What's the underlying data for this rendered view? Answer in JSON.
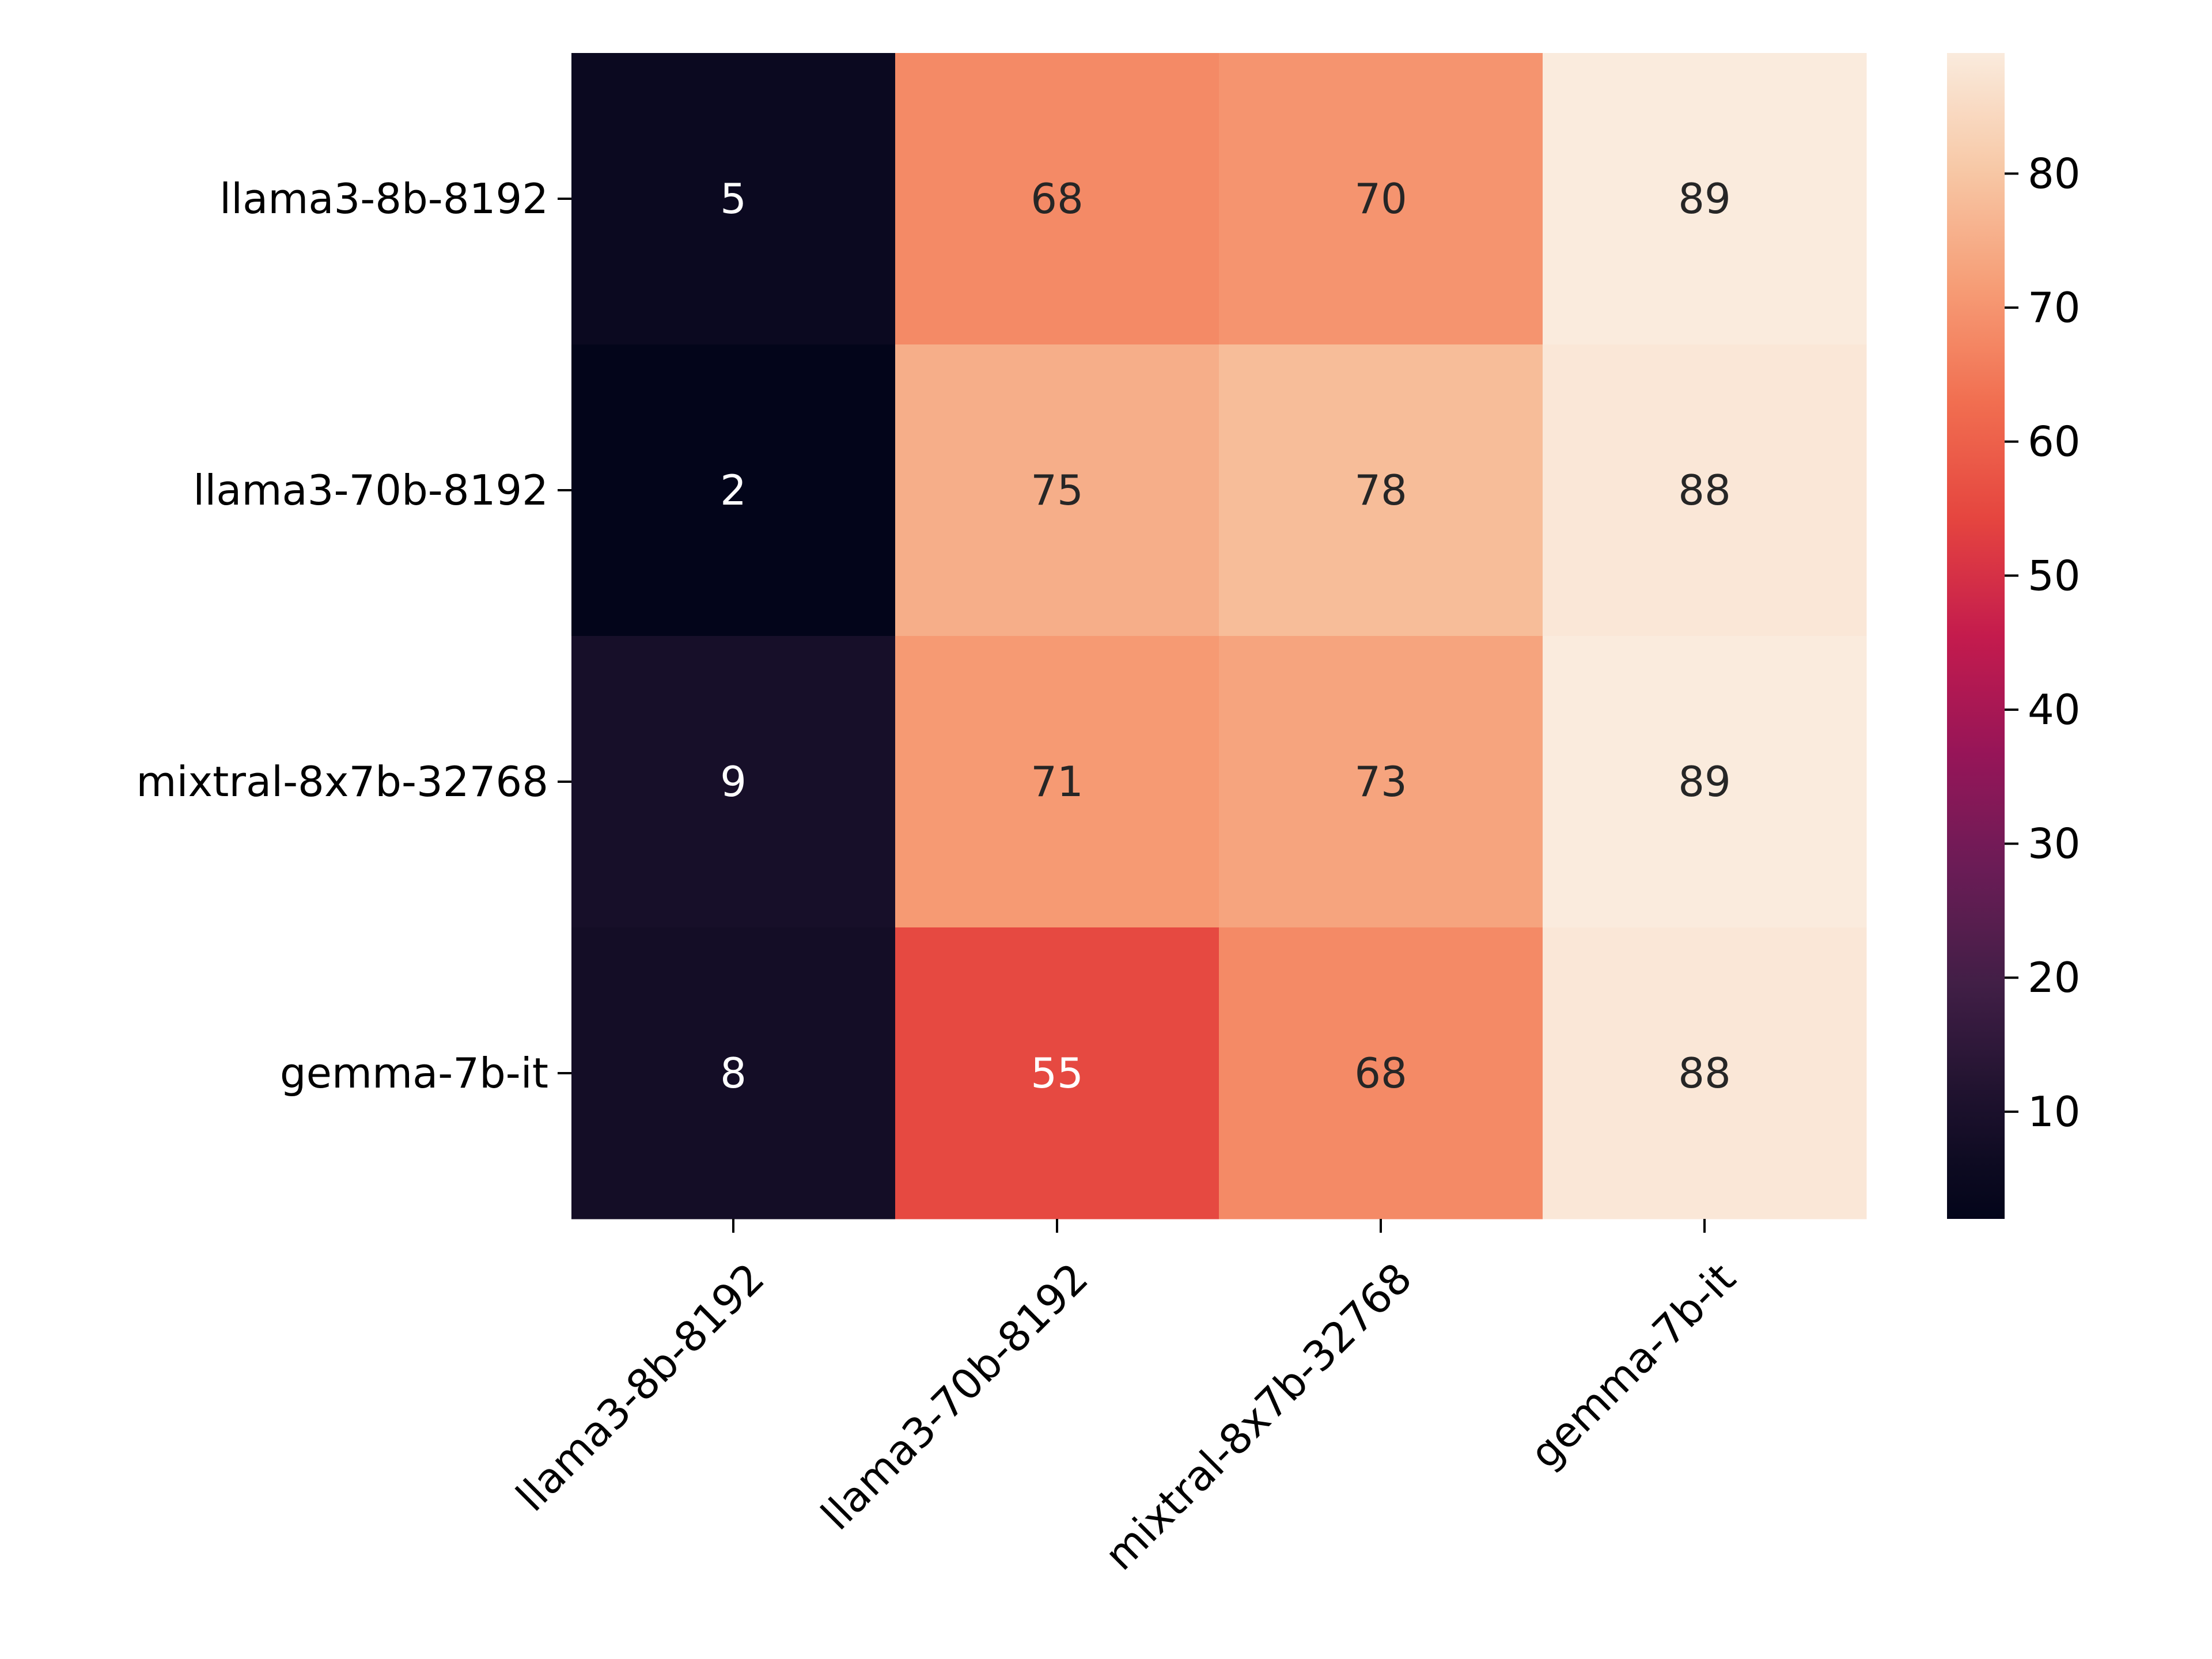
{
  "chart_data": {
    "type": "heatmap",
    "title": "",
    "xlabel": "",
    "ylabel": "",
    "x_categories": [
      "llama3-8b-8192",
      "llama3-70b-8192",
      "mixtral-8x7b-32768",
      "gemma-7b-it"
    ],
    "y_categories": [
      "llama3-8b-8192",
      "llama3-70b-8192",
      "mixtral-8x7b-32768",
      "gemma-7b-it"
    ],
    "values": [
      [
        5,
        68,
        70,
        89
      ],
      [
        2,
        75,
        78,
        88
      ],
      [
        9,
        71,
        73,
        89
      ],
      [
        8,
        55,
        68,
        88
      ]
    ],
    "colormap": "rocket",
    "value_range": [
      2,
      89
    ],
    "colorbar_ticks": [
      10,
      20,
      30,
      40,
      50,
      60,
      70,
      80
    ],
    "annotations": true,
    "grid": false,
    "colorbar_placement": "right"
  }
}
